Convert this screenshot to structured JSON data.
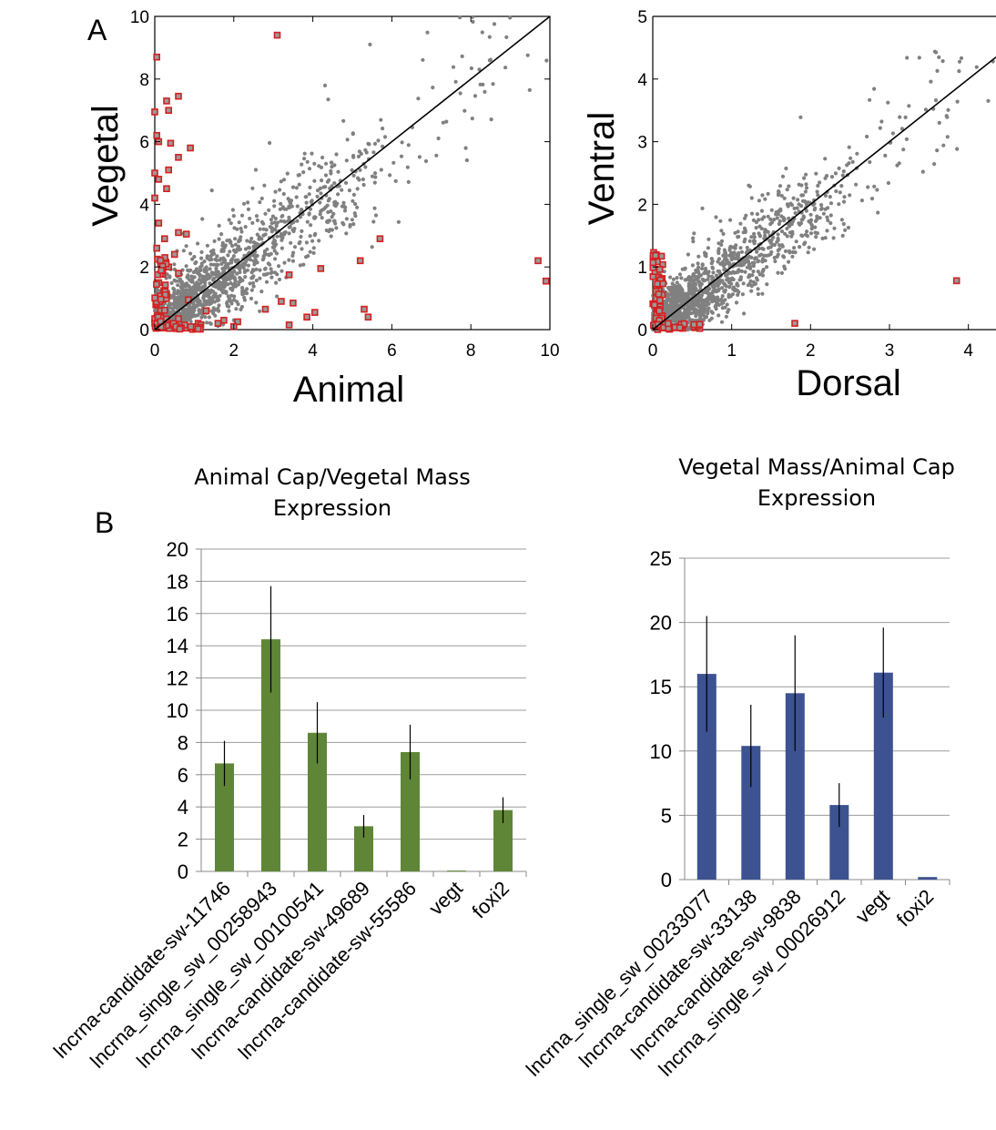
{
  "panels": {
    "a": "A",
    "b": "B"
  },
  "chart_data": [
    {
      "type": "scatter",
      "id": "animal-vegetal",
      "xlabel": "Animal",
      "ylabel": "Vegetal",
      "xlim": [
        0,
        10
      ],
      "ylim": [
        0,
        10
      ],
      "xticks": [
        0,
        2,
        4,
        6,
        8,
        10
      ],
      "yticks": [
        0,
        2,
        4,
        6,
        8,
        10
      ],
      "diagonal": true,
      "colors": {
        "background": "#808080",
        "highlight": "#d42020"
      },
      "highlight_points": [
        [
          3.1,
          9.4
        ],
        [
          0.05,
          8.7
        ],
        [
          0.3,
          7.3
        ],
        [
          0.6,
          7.45
        ],
        [
          0.35,
          7.0
        ],
        [
          0.0,
          6.95
        ],
        [
          0.05,
          6.2
        ],
        [
          0.1,
          6.0
        ],
        [
          0.4,
          5.95
        ],
        [
          0.9,
          5.8
        ],
        [
          0.6,
          5.5
        ],
        [
          0.0,
          5.0
        ],
        [
          0.35,
          5.1
        ],
        [
          0.1,
          4.8
        ],
        [
          0.3,
          4.5
        ],
        [
          0.0,
          4.2
        ],
        [
          0.1,
          3.4
        ],
        [
          0.6,
          3.1
        ],
        [
          0.8,
          3.05
        ],
        [
          0.25,
          2.9
        ],
        [
          5.7,
          2.9
        ],
        [
          0.5,
          2.4
        ],
        [
          5.2,
          2.2
        ],
        [
          9.7,
          2.2
        ],
        [
          0.35,
          2.0
        ],
        [
          4.2,
          1.95
        ],
        [
          3.4,
          1.75
        ],
        [
          0.6,
          1.8
        ],
        [
          9.9,
          1.55
        ],
        [
          0.1,
          1.5
        ],
        [
          0.85,
          0.95
        ],
        [
          3.2,
          0.9
        ],
        [
          3.5,
          0.85
        ],
        [
          2.8,
          0.65
        ],
        [
          5.3,
          0.65
        ],
        [
          4.05,
          0.55
        ],
        [
          1.3,
          0.6
        ],
        [
          5.4,
          0.4
        ],
        [
          3.85,
          0.4
        ],
        [
          1.75,
          0.3
        ],
        [
          2.1,
          0.25
        ],
        [
          3.4,
          0.15
        ],
        [
          1.6,
          0.2
        ],
        [
          2.0,
          0.1
        ],
        [
          0.2,
          0.1
        ],
        [
          0.5,
          0.15
        ],
        [
          0.8,
          0.05
        ],
        [
          1.1,
          0.2
        ],
        [
          0.3,
          1.1
        ],
        [
          0.15,
          0.6
        ],
        [
          0.0,
          0.35
        ],
        [
          0.0,
          0.2
        ],
        [
          0.6,
          0.35
        ],
        [
          0.05,
          2.6
        ]
      ]
    },
    {
      "type": "scatter",
      "id": "dorsal-ventral",
      "xlabel": "Dorsal",
      "ylabel": "Ventral",
      "xlim": [
        0,
        4.35
      ],
      "ylim": [
        0,
        5
      ],
      "xticks": [
        0,
        1,
        2,
        3,
        4
      ],
      "yticks": [
        0,
        1,
        2,
        3,
        4,
        5
      ],
      "diagonal": true,
      "colors": {
        "background": "#808080",
        "highlight": "#d42020"
      },
      "highlight_points": [
        [
          0.1,
          0.8
        ],
        [
          0.22,
          0.02
        ],
        [
          0.3,
          0.03
        ],
        [
          0.38,
          0.02
        ],
        [
          1.8,
          0.1
        ],
        [
          3.85,
          0.78
        ]
      ]
    },
    {
      "type": "bar",
      "id": "animal-cap-vegetal-mass",
      "title": "Animal Cap/Vegetal Mass Expression",
      "categories": [
        "lncrna-candidate-sw-11746",
        "lncrna_single_sw_00258943",
        "lncrna_single_sw_00100541",
        "lncrna-candidate-sw-49689",
        "lncrna-candidate-sw-55586",
        "vegt",
        "foxi2"
      ],
      "values": [
        6.7,
        14.4,
        8.6,
        2.8,
        7.4,
        0.05,
        3.8
      ],
      "errors": [
        1.4,
        3.3,
        1.9,
        0.7,
        1.7,
        0.0,
        0.8
      ],
      "ylim": [
        0,
        20
      ],
      "yticks": [
        0,
        2,
        4,
        6,
        8,
        10,
        12,
        14,
        16,
        18,
        20
      ],
      "color": "#5f8637"
    },
    {
      "type": "bar",
      "id": "vegetal-mass-animal-cap",
      "title": "Vegetal Mass/Animal Cap Expression",
      "categories": [
        "lncrna_single_sw_00233077",
        "lncrna-candidate-sw-33138",
        "lncrna-candidate-sw-9838",
        "lncrna_single_sw_00026912",
        "vegt",
        "foxi2"
      ],
      "values": [
        16.0,
        10.4,
        14.5,
        5.8,
        16.1,
        0.2
      ],
      "errors": [
        4.5,
        3.2,
        4.5,
        1.7,
        3.5,
        0.0
      ],
      "ylim": [
        0,
        25
      ],
      "yticks": [
        0,
        5,
        10,
        15,
        20,
        25
      ],
      "color": "#3c5291"
    }
  ]
}
